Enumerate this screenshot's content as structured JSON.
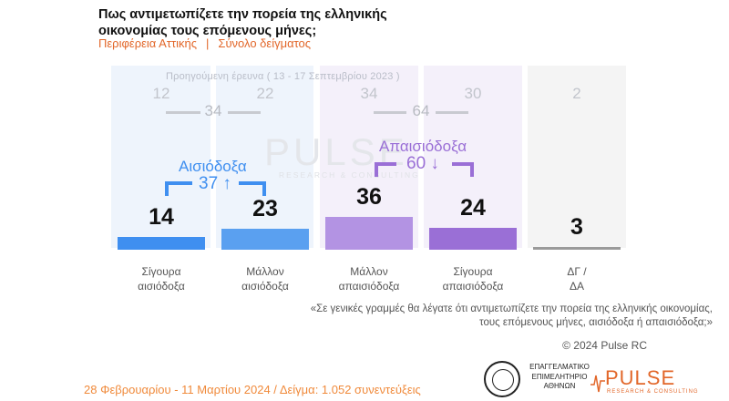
{
  "header": {
    "title_line1": "Πως αντιμετωπίζετε την πορεία της ελληνικής",
    "title_line2": "οικονομίας τους επόμενους μήνες;",
    "subtitle_region": "Περιφέρεια Αττικής",
    "subtitle_sep": "|",
    "subtitle_sample": "Σύνολο δείγματος"
  },
  "previous_survey": {
    "label": "Προηγούμενη έρευνα  ( 13 - 17 Σεπτεμβρίου 2023 )",
    "values": [
      "12",
      "22",
      "34",
      "30",
      "2"
    ],
    "group_optimistic_total": "34",
    "group_pessimistic_total": "64"
  },
  "watermark": {
    "main": "PULSE",
    "sub": "RESEARCH & CONSULTING"
  },
  "groups": {
    "optimistic_label": "Αισιόδοξα",
    "optimistic_total": "37",
    "optimistic_arrow": "↑",
    "pessimistic_label": "Απαισιόδοξα",
    "pessimistic_total": "60",
    "pessimistic_arrow": "↓"
  },
  "colors": {
    "optimistic": "#3f8ff0",
    "pessimistic": "#9a6fd6",
    "dk": "#888888",
    "accent_orange": "#e2672a"
  },
  "chart_data": {
    "type": "bar",
    "categories": [
      "Σίγουρα αισιόδοξα",
      "Μάλλον αισιόδοξα",
      "Μάλλον απαισιόδοξα",
      "Σίγουρα απαισιόδοξα",
      "ΔΓ / ΔΑ"
    ],
    "category_lines": [
      [
        "Σίγουρα",
        "αισιόδοξα"
      ],
      [
        "Μάλλον",
        "αισιόδοξα"
      ],
      [
        "Μάλλον",
        "απαισιόδοξα"
      ],
      [
        "Σίγουρα",
        "απαισιόδοξα"
      ],
      [
        "ΔΓ /",
        "ΔΑ"
      ]
    ],
    "values": [
      14,
      23,
      36,
      24,
      3
    ],
    "previous_values": [
      12,
      22,
      34,
      30,
      2
    ],
    "bar_colors": [
      "#3f8ff0",
      "#5aa0f0",
      "#b393e3",
      "#9a6fd6",
      "#9a9a9a"
    ],
    "ylim": [
      0,
      100
    ]
  },
  "question": {
    "line1": "«Σε γενικές γραμμές θα λέγατε ότι αντιμετωπίζετε την πορεία της ελληνικής οικονομίας,",
    "line2": "τους επόμενους μήνες, αισιόδοξα ή απαισιόδοξα;»"
  },
  "copyright": "© 2024 Pulse RC",
  "footer": {
    "text": "28 Φεβρουαρίου - 11 Μαρτίου 2024  /  Δείγμα:  1.052 συνεντεύξεις"
  },
  "logos": {
    "chamber_line1": "ΕΠΑΓΓΕΛΜΑΤΙΚΟ",
    "chamber_line2": "ΕΠΙΜΕΛΗΤΗΡΙΟ",
    "chamber_line3": "ΑΘΗΝΩΝ",
    "pulse": "PULSE",
    "pulse_sub": "RESEARCH & CONSULTING"
  }
}
